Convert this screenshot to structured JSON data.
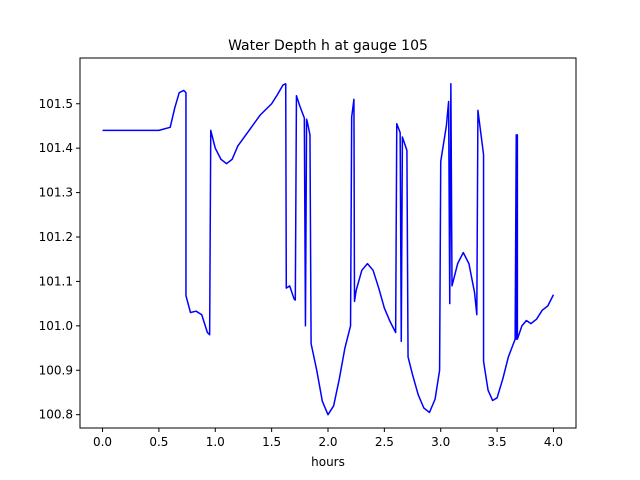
{
  "chart_data": {
    "type": "line",
    "title": "Water Depth h at gauge 105",
    "xlabel": "hours",
    "ylabel": "",
    "xlim": [
      -0.2,
      4.2
    ],
    "ylim": [
      100.77,
      101.603
    ],
    "grid": false,
    "x_ticks": [
      0.0,
      0.5,
      1.0,
      1.5,
      2.0,
      2.5,
      3.0,
      3.5,
      4.0
    ],
    "x_tick_labels": [
      "0.0",
      "0.5",
      "1.0",
      "1.5",
      "2.0",
      "2.5",
      "3.0",
      "3.5",
      "4.0"
    ],
    "y_ticks": [
      100.8,
      100.9,
      101.0,
      101.1,
      101.2,
      101.3,
      101.4,
      101.5
    ],
    "y_tick_labels": [
      "100.8",
      "100.9",
      "101.0",
      "101.1",
      "101.2",
      "101.3",
      "101.4",
      "101.5"
    ],
    "series": [
      {
        "color": "#0000ff",
        "x": [
          0.0,
          0.3,
          0.5,
          0.6,
          0.64,
          0.68,
          0.72,
          0.74,
          0.74,
          0.78,
          0.83,
          0.88,
          0.93,
          0.95,
          0.96,
          1.0,
          1.05,
          1.1,
          1.15,
          1.2,
          1.3,
          1.4,
          1.5,
          1.55,
          1.6,
          1.625,
          1.63,
          1.66,
          1.7,
          1.71,
          1.72,
          1.75,
          1.79,
          1.8,
          1.81,
          1.82,
          1.84,
          1.85,
          1.9,
          1.95,
          2.0,
          2.05,
          2.1,
          2.15,
          2.2,
          2.21,
          2.23,
          2.235,
          2.25,
          2.3,
          2.35,
          2.4,
          2.45,
          2.5,
          2.55,
          2.6,
          2.61,
          2.64,
          2.65,
          2.66,
          2.68,
          2.7,
          2.71,
          2.75,
          2.8,
          2.85,
          2.9,
          2.95,
          2.99,
          3.0,
          3.05,
          3.07,
          3.08,
          3.09,
          3.1,
          3.1,
          3.15,
          3.2,
          3.25,
          3.3,
          3.32,
          3.33,
          3.38,
          3.38,
          3.42,
          3.46,
          3.5,
          3.55,
          3.6,
          3.66,
          3.67,
          3.67,
          3.675,
          3.68,
          3.68,
          3.72,
          3.76,
          3.8,
          3.85,
          3.9,
          3.95,
          4.0
        ],
        "y": [
          101.44,
          101.44,
          101.44,
          101.447,
          101.49,
          101.525,
          101.53,
          101.525,
          101.068,
          101.03,
          101.033,
          101.025,
          100.985,
          100.98,
          101.44,
          101.4,
          101.375,
          101.365,
          101.375,
          101.405,
          101.44,
          101.475,
          101.5,
          101.52,
          101.542,
          101.545,
          101.085,
          101.09,
          101.06,
          101.058,
          101.518,
          101.495,
          101.468,
          101.0,
          101.465,
          101.455,
          101.43,
          100.96,
          100.9,
          100.83,
          100.8,
          100.82,
          100.88,
          100.95,
          101.0,
          101.47,
          101.51,
          101.055,
          101.08,
          101.125,
          101.14,
          101.125,
          101.085,
          101.04,
          101.01,
          100.985,
          101.455,
          101.435,
          100.965,
          101.425,
          101.41,
          101.395,
          100.93,
          100.89,
          100.845,
          100.815,
          100.805,
          100.835,
          100.9,
          101.37,
          101.45,
          101.505,
          101.05,
          101.545,
          101.09,
          101.09,
          101.14,
          101.165,
          101.14,
          101.075,
          101.025,
          101.485,
          101.385,
          100.92,
          100.855,
          100.832,
          100.838,
          100.88,
          100.93,
          100.97,
          101.43,
          100.97,
          101.43,
          101.43,
          100.97,
          101.0,
          101.012,
          101.005,
          101.015,
          101.035,
          101.045,
          101.07
        ]
      }
    ]
  }
}
